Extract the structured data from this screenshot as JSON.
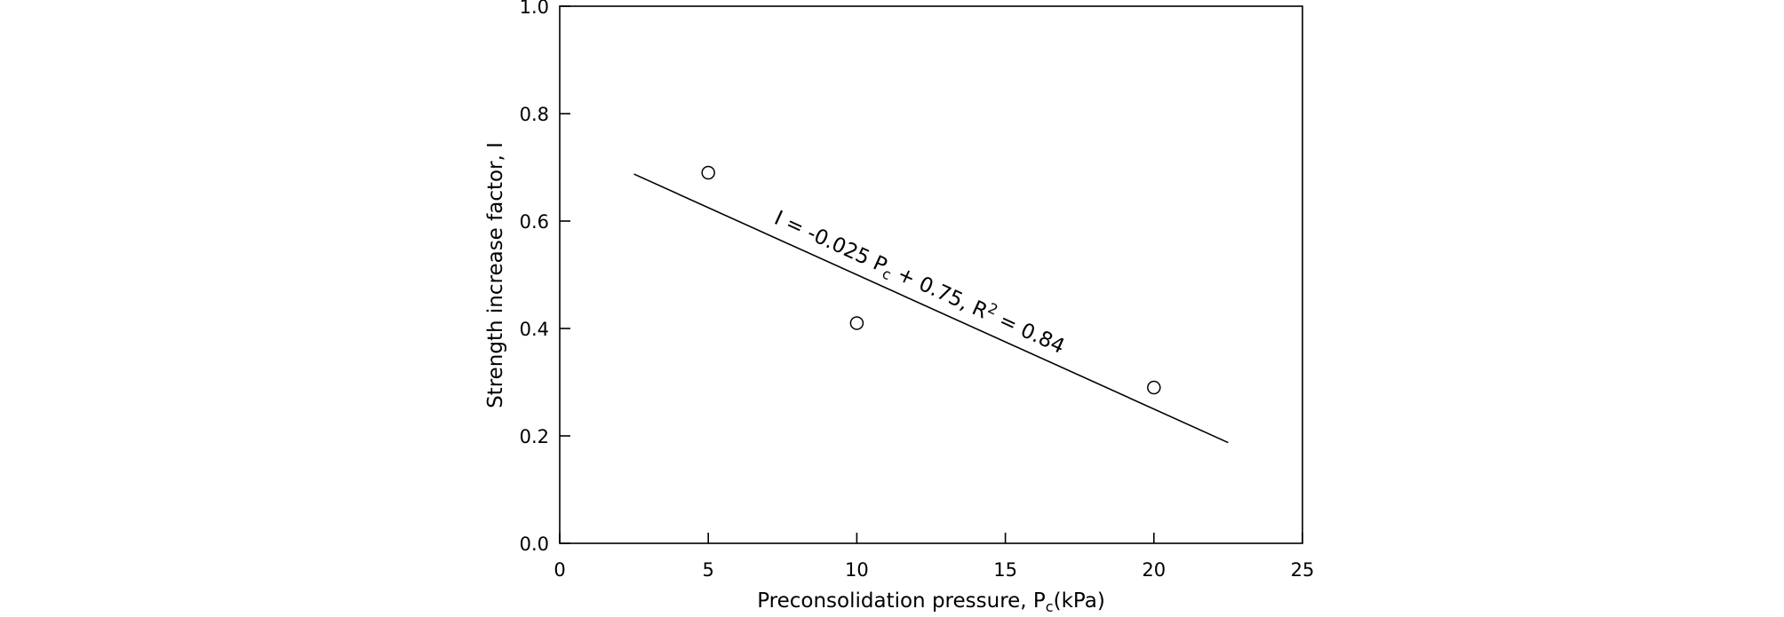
{
  "chart_data": {
    "type": "scatter",
    "title": "",
    "xlabel": "Preconsolidation pressure, P",
    "xlabel_sub": "c",
    "xlabel_unit": "(kPa)",
    "ylabel": "Strength increase factor, I",
    "xlim": [
      0,
      25
    ],
    "ylim": [
      0.0,
      1.0
    ],
    "x_ticks": [
      0,
      5,
      10,
      15,
      20,
      25
    ],
    "x_tick_labels": [
      "0",
      "5",
      "10",
      "15",
      "20",
      "25"
    ],
    "y_ticks": [
      0.0,
      0.2,
      0.4,
      0.6,
      0.8,
      1.0
    ],
    "y_tick_labels": [
      "0.0",
      "0.2",
      "0.4",
      "0.6",
      "0.8",
      "1.0"
    ],
    "grid": false,
    "series": [
      {
        "marker": "open-circle",
        "x": [
          5,
          10,
          20
        ],
        "y": [
          0.69,
          0.41,
          0.29
        ]
      }
    ],
    "fit_line": {
      "slope": -0.025,
      "intercept": 0.75,
      "x_range": [
        2.5,
        22.5
      ]
    },
    "equation_parts": {
      "lhs": "I = -0.025 P",
      "sub": "c",
      "mid": " + 0.75, R",
      "sup": "2",
      "rhs": " = 0.84"
    }
  }
}
